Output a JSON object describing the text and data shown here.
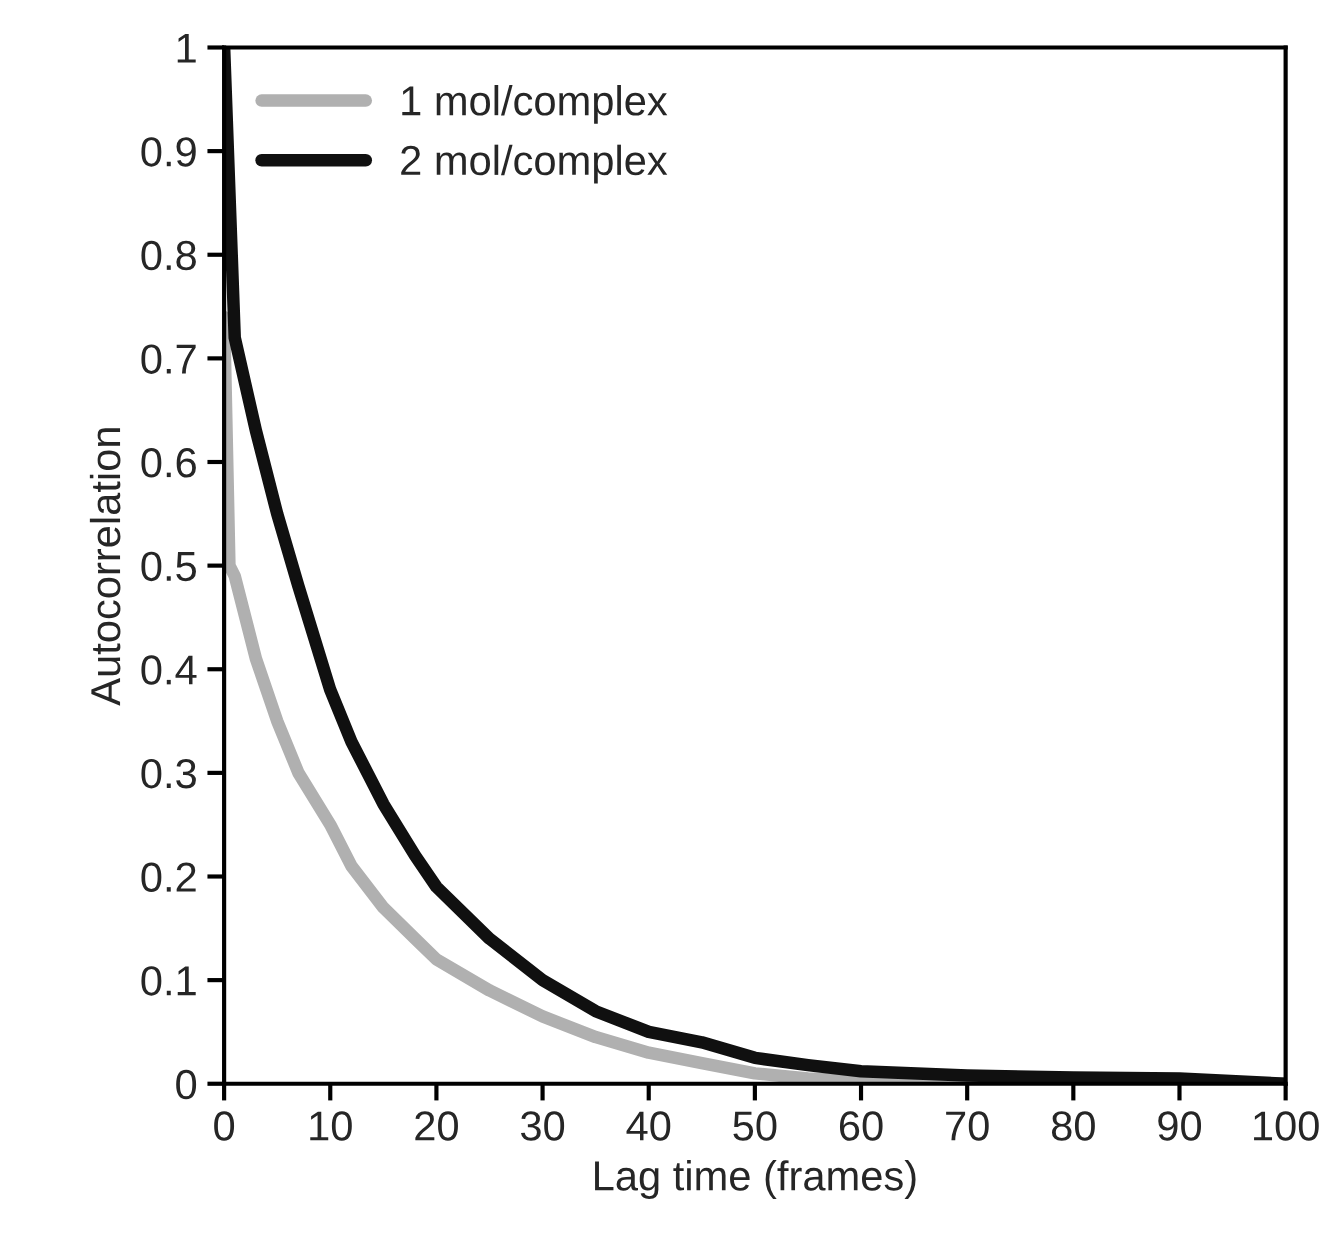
{
  "chart_data": {
    "type": "line",
    "xlabel": "Lag time (frames)",
    "ylabel": "Autocorrelation",
    "xlim": [
      0,
      100
    ],
    "xticks": [
      0,
      10,
      20,
      30,
      40,
      50,
      60,
      70,
      80,
      90,
      100
    ],
    "ylim": [
      0,
      1
    ],
    "yticks": [
      0,
      0.1,
      0.2,
      0.3,
      0.4,
      0.5,
      0.6,
      0.7,
      0.8,
      0.9,
      1
    ],
    "grid": false,
    "legend": "top left",
    "marker": "none",
    "line_style": "solid",
    "series": [
      {
        "name": "1 mol/complex",
        "color": "#b0b0b0",
        "x": [
          0,
          0.5,
          1,
          3,
          5,
          7,
          10,
          12,
          15,
          18,
          20,
          25,
          30,
          35,
          40,
          45,
          50,
          55,
          60,
          70,
          80,
          90,
          100
        ],
        "values": [
          0.74,
          0.5,
          0.49,
          0.41,
          0.35,
          0.3,
          0.25,
          0.21,
          0.17,
          0.14,
          0.12,
          0.09,
          0.065,
          0.045,
          0.03,
          0.02,
          0.01,
          0.005,
          0.003,
          0.002,
          0.001,
          0.001,
          0
        ]
      },
      {
        "name": "2 mol/complex",
        "color": "#101010",
        "x": [
          0,
          1,
          3,
          5,
          7,
          10,
          12,
          15,
          18,
          20,
          25,
          30,
          35,
          40,
          45,
          50,
          55,
          60,
          70,
          80,
          90,
          100
        ],
        "values": [
          1.0,
          0.72,
          0.63,
          0.55,
          0.48,
          0.38,
          0.33,
          0.27,
          0.22,
          0.19,
          0.14,
          0.1,
          0.07,
          0.05,
          0.04,
          0.025,
          0.018,
          0.012,
          0.008,
          0.006,
          0.005,
          0
        ]
      }
    ]
  }
}
